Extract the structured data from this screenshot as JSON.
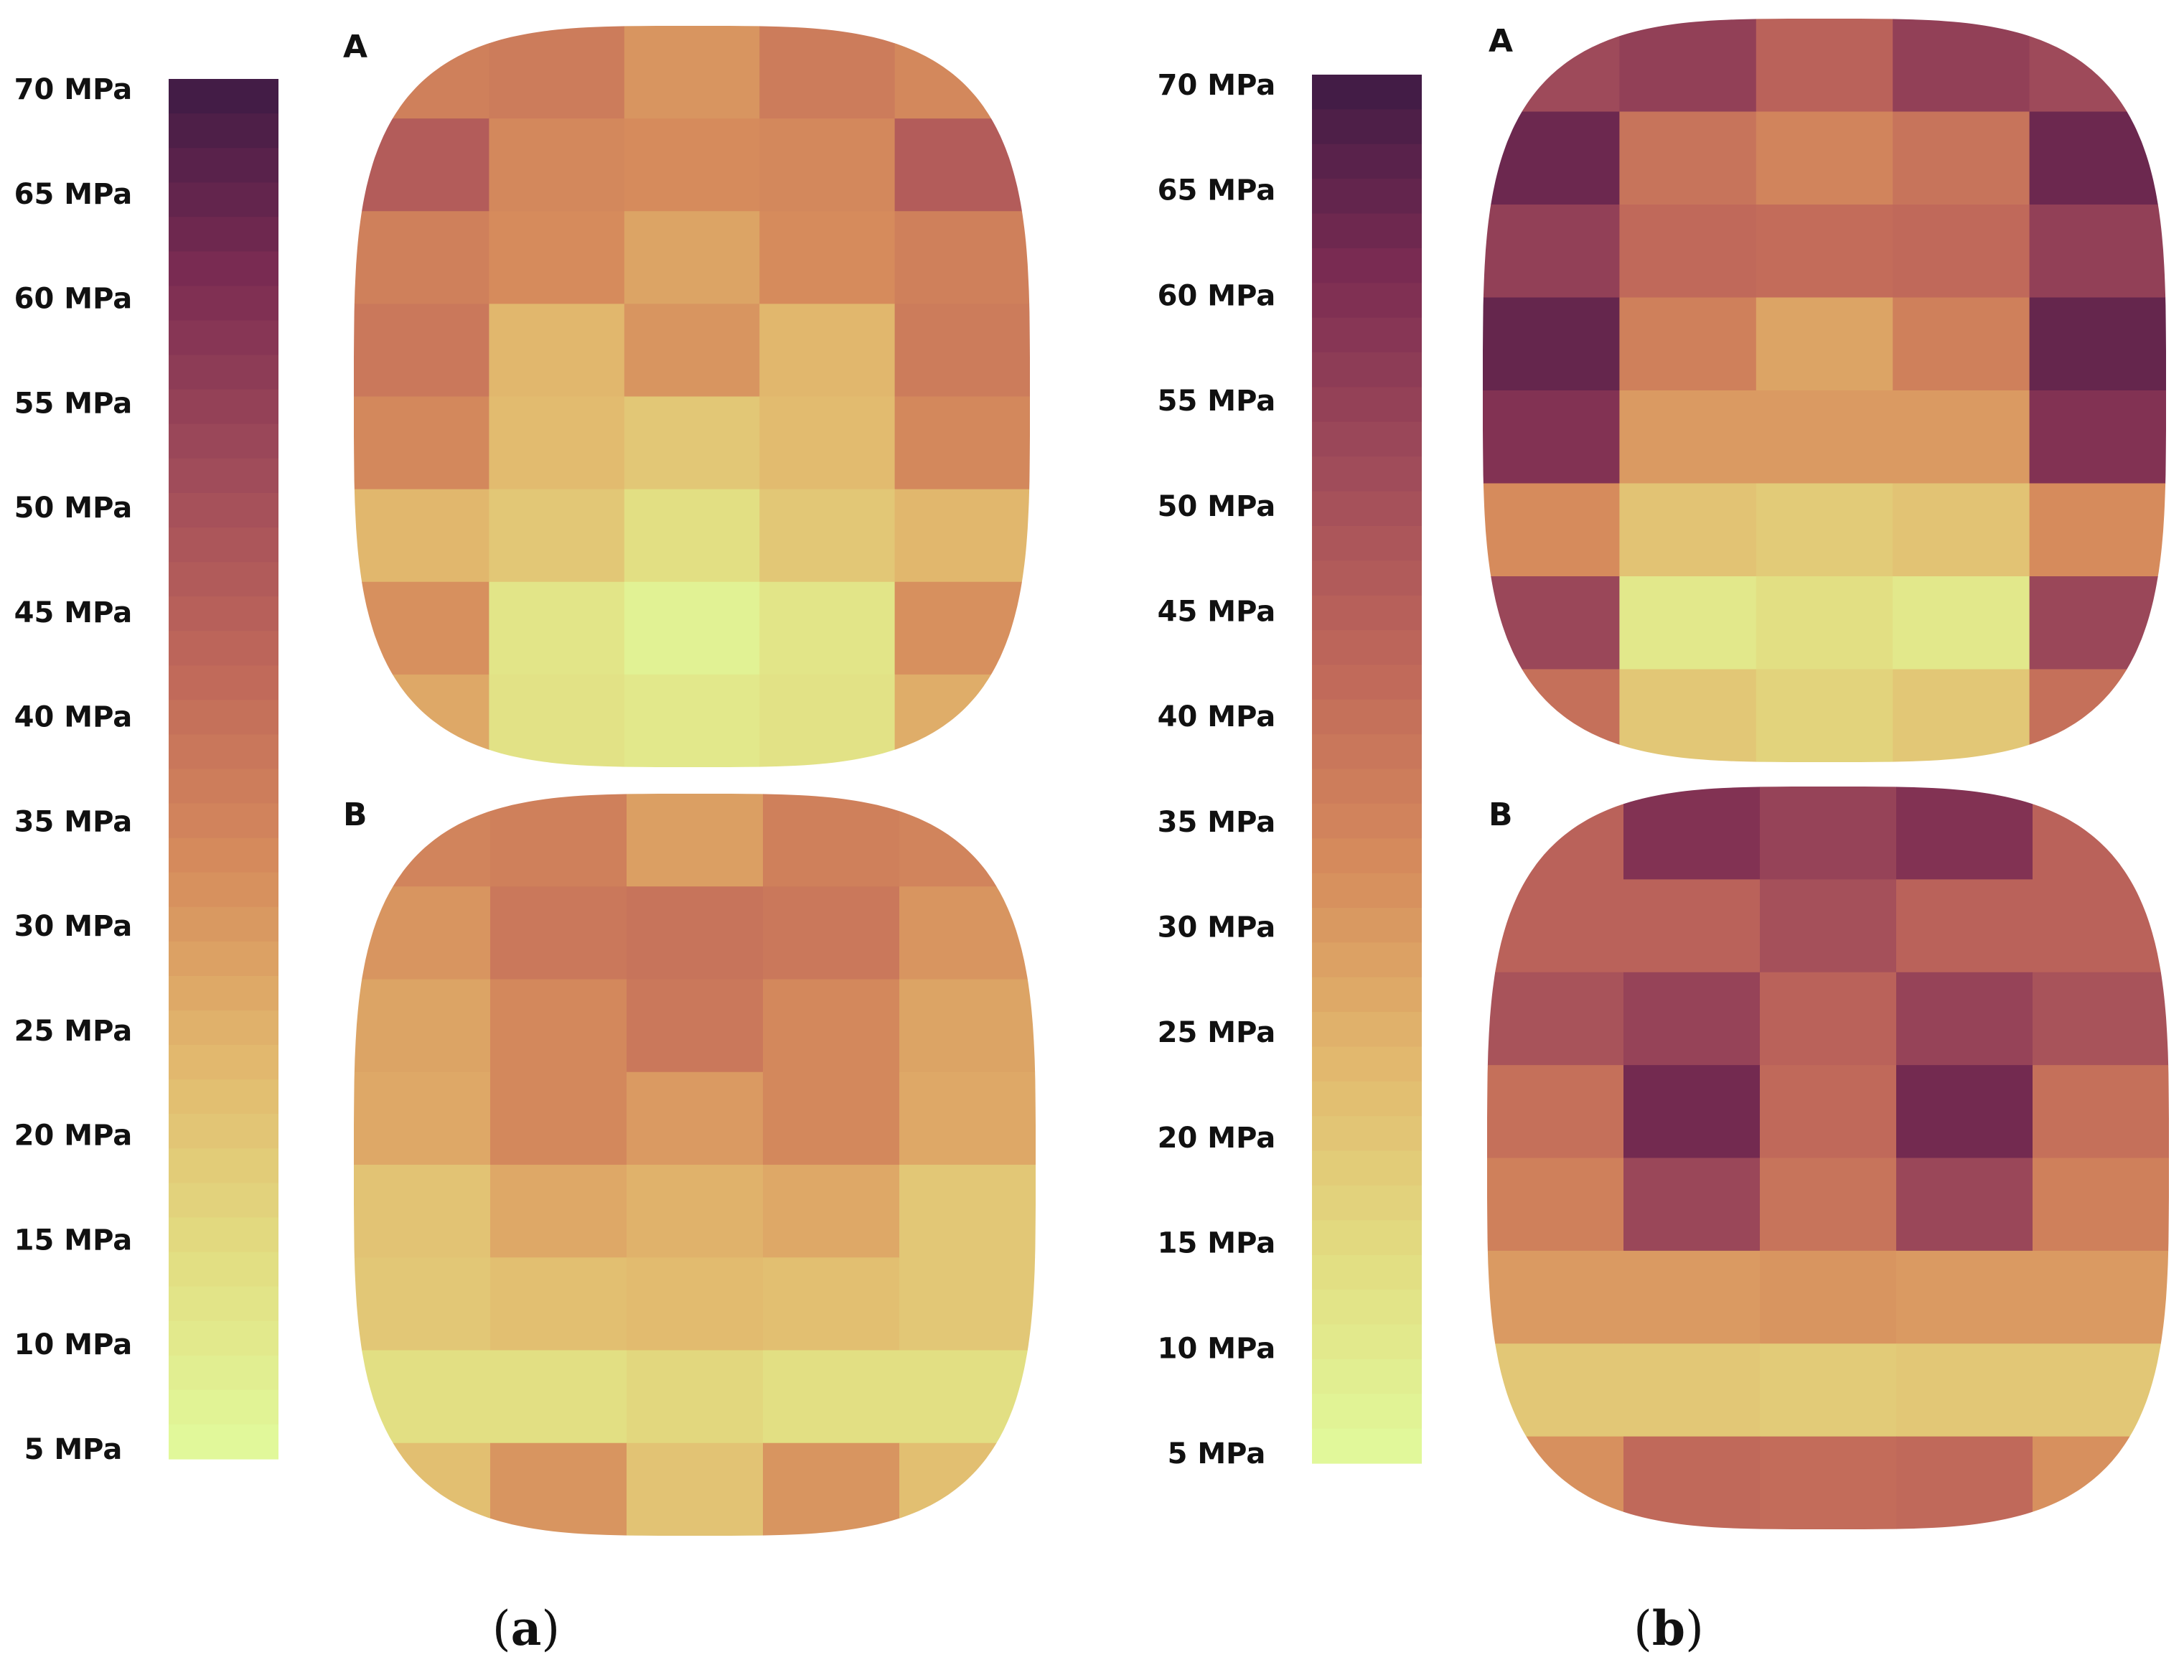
{
  "figure": {
    "captions": [
      {
        "open": "(",
        "letter": "a",
        "close": ")"
      },
      {
        "open": "(",
        "letter": "b",
        "close": ")"
      }
    ]
  },
  "colorbar": {
    "ticks": [
      "70 MPa",
      "65 MPa",
      "60 MPa",
      "55 MPa",
      "50 MPa",
      "45 MPa",
      "40 MPa",
      "35 MPa",
      "30 MPa",
      "25 MPa",
      "20 MPa",
      "15 MPa",
      "10 MPa",
      "5 MPa"
    ],
    "range": [
      5,
      70
    ],
    "colormap": "flare (light yellow-green → orange → dark purple)",
    "stops": [
      "#e1fb9c",
      "#e2de82",
      "#e2b96e",
      "#d68c5c",
      "#c0685a",
      "#a04c5a",
      "#7b2c52",
      "#3e1a45"
    ]
  },
  "chart_data": [
    {
      "type": "heatmap",
      "panel": "(a)",
      "label": "A",
      "value_unit": "MPa",
      "values": [
        [
          36,
          37,
          31,
          37,
          34
        ],
        [
          46,
          34,
          33,
          34,
          46
        ],
        [
          36,
          33,
          28,
          33,
          36
        ],
        [
          38,
          24,
          31,
          24,
          37
        ],
        [
          34,
          23,
          20,
          23,
          34
        ],
        [
          24,
          20,
          14,
          20,
          24
        ],
        [
          32,
          12,
          8,
          12,
          32
        ],
        [
          27,
          13,
          11,
          13,
          26
        ]
      ]
    },
    {
      "type": "heatmap",
      "panel": "(a)",
      "label": "B",
      "value_unit": "MPa",
      "values": [
        [
          35,
          36,
          29,
          36,
          35
        ],
        [
          31,
          38,
          39,
          38,
          31
        ],
        [
          28,
          34,
          38,
          34,
          28
        ],
        [
          27,
          34,
          30,
          34,
          27
        ],
        [
          21,
          27,
          25,
          27,
          20
        ],
        [
          20,
          22,
          23,
          22,
          20
        ],
        [
          14,
          14,
          16,
          14,
          14
        ],
        [
          22,
          31,
          21,
          31,
          22
        ]
      ]
    },
    {
      "type": "heatmap",
      "panel": "(b)",
      "label": "A",
      "value_unit": "MPa",
      "values": [
        [
          52,
          55,
          44,
          55,
          52
        ],
        [
          63,
          39,
          35,
          39,
          63
        ],
        [
          55,
          42,
          41,
          42,
          55
        ],
        [
          64,
          36,
          28,
          36,
          64
        ],
        [
          59,
          30,
          30,
          30,
          59
        ],
        [
          33,
          21,
          19,
          21,
          33
        ],
        [
          53,
          11,
          14,
          11,
          53
        ],
        [
          40,
          20,
          17,
          20,
          40
        ]
      ]
    },
    {
      "type": "heatmap",
      "panel": "(b)",
      "label": "B",
      "value_unit": "MPa",
      "values": [
        [
          44,
          59,
          54,
          59,
          44
        ],
        [
          44,
          44,
          50,
          44,
          44
        ],
        [
          49,
          54,
          44,
          54,
          49
        ],
        [
          40,
          62,
          42,
          62,
          40
        ],
        [
          36,
          53,
          39,
          53,
          36
        ],
        [
          30,
          30,
          31,
          30,
          30
        ],
        [
          20,
          20,
          19,
          20,
          20
        ],
        [
          32,
          42,
          41,
          42,
          32
        ]
      ]
    }
  ]
}
